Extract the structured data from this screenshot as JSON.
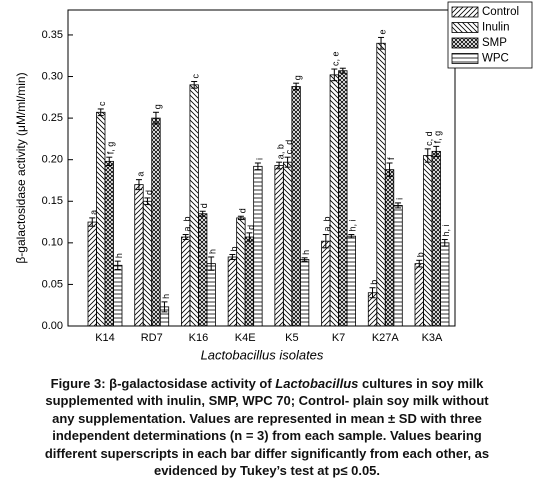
{
  "chart_data": {
    "type": "bar",
    "y_label": "β-galactosidase activity (μM/ml/min)",
    "x_label": "Lactobacillus isolates",
    "categories": [
      "K14",
      "RD7",
      "K16",
      "K4E",
      "K5",
      "K7",
      "K27A",
      "K3A"
    ],
    "series": [
      {
        "name": "Control",
        "color": "#000000",
        "hatch": "/",
        "values": [
          0.125,
          0.17,
          0.107,
          0.083,
          0.193,
          0.102,
          0.04,
          0.075
        ],
        "errors": [
          0.005,
          0.006,
          0.003,
          0.003,
          0.004,
          0.008,
          0.006,
          0.004
        ],
        "labels": [
          "a",
          "a",
          "a, b",
          "b",
          "a, b",
          "a, b",
          "b",
          "b"
        ]
      },
      {
        "name": "Inulin",
        "color": "#000000",
        "hatch": "\\",
        "values": [
          0.257,
          0.15,
          0.29,
          0.13,
          0.197,
          0.302,
          0.34,
          0.205
        ],
        "errors": [
          0.004,
          0.004,
          0.004,
          0.002,
          0.006,
          0.007,
          0.007,
          0.008
        ],
        "labels": [
          "c",
          "d",
          "c",
          "d",
          "c, d",
          "c, e",
          "e",
          "c, d"
        ]
      },
      {
        "name": "SMP",
        "color": "#000000",
        "hatch": "x",
        "values": [
          0.198,
          0.25,
          0.135,
          0.107,
          0.288,
          0.307,
          0.188,
          0.21
        ],
        "errors": [
          0.005,
          0.007,
          0.003,
          0.005,
          0.004,
          0.003,
          0.008,
          0.006
        ],
        "labels": [
          "f, g",
          "g",
          "d",
          "d",
          "g",
          null,
          "f",
          "f, g"
        ]
      },
      {
        "name": "WPC",
        "color": "#000000",
        "hatch": "-",
        "values": [
          0.073,
          0.023,
          0.075,
          0.192,
          0.08,
          0.108,
          0.145,
          0.1
        ],
        "errors": [
          0.005,
          0.006,
          0.008,
          0.004,
          0.002,
          0.002,
          0.003,
          0.004
        ],
        "labels": [
          "h",
          "h",
          "h",
          "i",
          "h",
          "h, i",
          "i",
          "h, i"
        ]
      }
    ],
    "ylim": [
      0,
      0.38
    ],
    "yticks": [
      {
        "value": 0,
        "label": "0.00"
      },
      {
        "value": 0.05,
        "label": "0.05"
      },
      {
        "value": 0.1,
        "label": "0.10"
      },
      {
        "value": 0.15,
        "label": "0.15"
      },
      {
        "value": 0.2,
        "label": "0.20"
      },
      {
        "value": 0.25,
        "label": "0.25"
      },
      {
        "value": 0.3,
        "label": "0.30"
      },
      {
        "value": 0.35,
        "label": "0.35"
      }
    ],
    "legend": "top-right",
    "caption": [
      [
        "Figure 3: β-galactosidase activity of ",
        "Lactobacillus",
        " cultures in soy milk"
      ],
      [
        "supplemented with inulin, SMP, WPC 70; Control- plain soy milk without"
      ],
      [
        "any supplementation. Values are represented in mean ± SD with three"
      ],
      [
        "independent determinations (n = 3) from each sample. Values bearing"
      ],
      [
        "different superscripts in each bar differ significantly from each other, as"
      ],
      [
        "evidenced by Tukey’s test at p≤ 0.05."
      ]
    ]
  }
}
